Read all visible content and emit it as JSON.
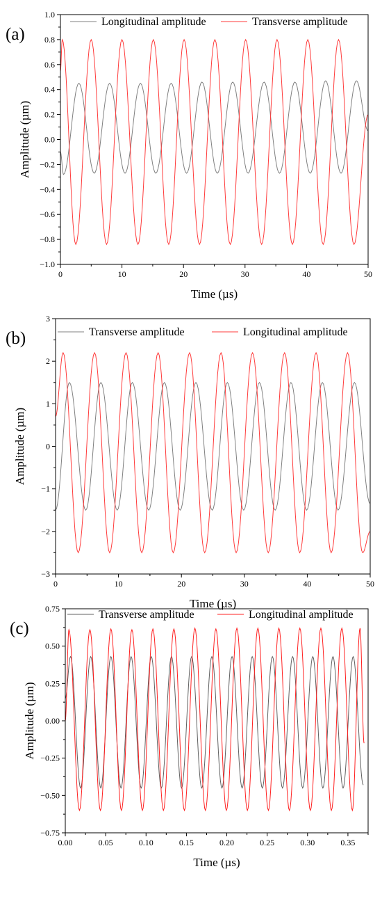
{
  "figure": {
    "background": "#ffffff",
    "axis_color": "#000000"
  },
  "chart_data": [
    {
      "panel_label": "(a)",
      "type": "line",
      "xlabel": "Time (µs)",
      "ylabel": "Amplitude (µm)",
      "xlim": [
        0,
        50
      ],
      "ylim": [
        -1.0,
        1.0
      ],
      "xticks": [
        0,
        10,
        20,
        30,
        40,
        50
      ],
      "xtick_labels": [
        "0",
        "10",
        "20",
        "30",
        "40",
        "50"
      ],
      "yticks": [
        -1.0,
        -0.8,
        -0.6,
        -0.4,
        -0.2,
        0.0,
        0.2,
        0.4,
        0.6,
        0.8,
        1.0
      ],
      "ytick_labels": [
        "−1.0",
        "−0.8",
        "−0.6",
        "−0.4",
        "−0.2",
        "0.0",
        "0.2",
        "0.4",
        "0.6",
        "0.8",
        "1.0"
      ],
      "grid": false,
      "legend": "top",
      "series": [
        {
          "name": "Longitudinal amplitude",
          "color": "#808080",
          "peak_times": [
            3.0,
            8.0,
            13.0,
            18.0,
            23.0,
            28.0,
            33.1,
            38.1,
            43.1,
            48.1
          ],
          "trough_times": [
            0.5,
            5.5,
            10.5,
            15.5,
            20.5,
            25.5,
            30.5,
            35.6,
            40.6,
            45.6
          ],
          "peak_values": [
            0.45,
            0.45,
            0.45,
            0.45,
            0.46,
            0.46,
            0.46,
            0.46,
            0.47,
            0.47
          ],
          "trough_values": [
            -0.28,
            -0.27,
            -0.27,
            -0.27,
            -0.27,
            -0.27,
            -0.27,
            -0.27,
            -0.27,
            -0.27
          ],
          "start": {
            "x": 0,
            "y": -0.1
          },
          "end": {
            "x": 50,
            "y": 0.07
          }
        },
        {
          "name": "Transverse amplitude",
          "color": "#ff3b3b",
          "peak_times": [
            0.3,
            5.0,
            10.0,
            15.1,
            20.1,
            25.1,
            30.1,
            35.2,
            40.2,
            45.2
          ],
          "trough_times": [
            2.5,
            7.5,
            12.6,
            17.6,
            22.6,
            27.6,
            32.7,
            37.7,
            42.7,
            47.7
          ],
          "peak_values": [
            0.8,
            0.8,
            0.8,
            0.8,
            0.8,
            0.8,
            0.8,
            0.8,
            0.8,
            0.8
          ],
          "trough_values": [
            -0.84,
            -0.84,
            -0.84,
            -0.84,
            -0.84,
            -0.84,
            -0.84,
            -0.84,
            -0.84,
            -0.84
          ],
          "start": {
            "x": 0,
            "y": 0.55
          },
          "end": {
            "x": 50,
            "y": 0.2
          }
        }
      ]
    },
    {
      "panel_label": "(b)",
      "type": "line",
      "xlabel": "Time (µs)",
      "ylabel": "Amplitude (µm)",
      "xlim": [
        0,
        50
      ],
      "ylim": [
        -3,
        3
      ],
      "xticks": [
        0,
        10,
        20,
        30,
        40,
        50
      ],
      "xtick_labels": [
        "0",
        "10",
        "20",
        "30",
        "40",
        "50"
      ],
      "yticks": [
        -3,
        -2,
        -1,
        0,
        1,
        2,
        3
      ],
      "ytick_labels": [
        "−3",
        "−2",
        "−1",
        "0",
        "1",
        "2",
        "3"
      ],
      "grid": false,
      "legend": "top",
      "series": [
        {
          "name": "Transverse amplitude",
          "color": "#808080",
          "peak_times": [
            2.2,
            7.2,
            12.2,
            17.3,
            22.3,
            27.3,
            32.4,
            37.4,
            42.4,
            47.5
          ],
          "trough_times": [
            4.8,
            9.8,
            14.8,
            19.8,
            24.9,
            29.9,
            34.9,
            39.9,
            44.9
          ],
          "peak_values": [
            1.5,
            1.5,
            1.5,
            1.5,
            1.5,
            1.5,
            1.5,
            1.5,
            1.5,
            1.5
          ],
          "trough_values": [
            -1.5,
            -1.5,
            -1.5,
            -1.5,
            -1.5,
            -1.5,
            -1.5,
            -1.5,
            -1.5
          ],
          "start": {
            "x": 0,
            "y": -1.5
          },
          "end": {
            "x": 50,
            "y": -1.35
          }
        },
        {
          "name": "Longitudinal amplitude",
          "color": "#ff3b3b",
          "peak_times": [
            1.2,
            6.2,
            11.2,
            16.3,
            21.3,
            26.3,
            31.3,
            36.4,
            41.4,
            46.4
          ],
          "trough_times": [
            3.6,
            8.6,
            13.7,
            18.7,
            23.7,
            28.7,
            33.8,
            38.8,
            43.8,
            48.8
          ],
          "peak_values": [
            2.2,
            2.2,
            2.2,
            2.2,
            2.2,
            2.2,
            2.2,
            2.2,
            2.2,
            2.2
          ],
          "trough_values": [
            -2.5,
            -2.5,
            -2.5,
            -2.5,
            -2.5,
            -2.5,
            -2.5,
            -2.5,
            -2.5,
            -2.5
          ],
          "start": {
            "x": 0,
            "y": 0.7
          },
          "end": {
            "x": 50,
            "y": -2.0
          }
        }
      ]
    },
    {
      "panel_label": "(c)",
      "type": "line",
      "xlabel": "Time (µs)",
      "ylabel": "Amplitude (µm)",
      "xlim": [
        0,
        0.375
      ],
      "ylim": [
        -0.75,
        0.75
      ],
      "xticks": [
        0,
        0.05,
        0.1,
        0.15,
        0.2,
        0.25,
        0.3,
        0.35
      ],
      "xtick_labels": [
        "0.00",
        "0.05",
        "0.10",
        "0.15",
        "0.20",
        "0.25",
        "0.30",
        "0.35"
      ],
      "yticks": [
        -0.75,
        -0.5,
        -0.25,
        0,
        0.25,
        0.5,
        0.75
      ],
      "ytick_labels": [
        "−0.75",
        "−0.50",
        "−0.25",
        "0.00",
        "0.25",
        "0.50",
        "0.75"
      ],
      "grid": false,
      "legend": "top",
      "series": [
        {
          "name": "Transverse amplitude",
          "color": "#606060",
          "peak_times": [
            0.0065,
            0.0315,
            0.0565,
            0.0815,
            0.1065,
            0.1315,
            0.1565,
            0.1815,
            0.2065,
            0.2315,
            0.2565,
            0.2815,
            0.3065,
            0.3315,
            0.3565
          ],
          "trough_times": [
            0.019,
            0.044,
            0.069,
            0.094,
            0.119,
            0.144,
            0.169,
            0.194,
            0.219,
            0.244,
            0.269,
            0.294,
            0.319,
            0.344
          ],
          "peak_values": [
            0.43,
            0.43,
            0.43,
            0.43,
            0.43,
            0.43,
            0.43,
            0.43,
            0.43,
            0.43,
            0.43,
            0.43,
            0.43,
            0.43,
            0.43
          ],
          "trough_values": [
            -0.45,
            -0.45,
            -0.45,
            -0.45,
            -0.45,
            -0.45,
            -0.45,
            -0.45,
            -0.45,
            -0.45,
            -0.45,
            -0.45,
            -0.45,
            -0.45
          ],
          "start": {
            "x": 0,
            "y": 0.15
          },
          "end": {
            "x": 0.369,
            "y": -0.43
          }
        },
        {
          "name": "Longitudinal amplitude",
          "color": "#ff2020",
          "peak_times": [
            0.0045,
            0.0305,
            0.0565,
            0.0825,
            0.1085,
            0.1345,
            0.1605,
            0.1865,
            0.2125,
            0.2385,
            0.2645,
            0.2905,
            0.3165,
            0.3425,
            0.365
          ],
          "trough_times": [
            0.0175,
            0.0435,
            0.0695,
            0.0955,
            0.1215,
            0.1475,
            0.1735,
            0.1995,
            0.2255,
            0.2515,
            0.2775,
            0.3035,
            0.3295,
            0.3555
          ],
          "peak_values": [
            0.61,
            0.61,
            0.615,
            0.61,
            0.615,
            0.615,
            0.62,
            0.615,
            0.62,
            0.62,
            0.62,
            0.62,
            0.62,
            0.62,
            0.62
          ],
          "trough_values": [
            -0.6,
            -0.6,
            -0.6,
            -0.6,
            -0.6,
            -0.6,
            -0.6,
            -0.6,
            -0.6,
            -0.6,
            -0.6,
            -0.6,
            -0.6,
            -0.6
          ],
          "start": {
            "x": 0,
            "y": 0.0
          },
          "end": {
            "x": 0.37,
            "y": -0.15
          }
        }
      ]
    }
  ]
}
